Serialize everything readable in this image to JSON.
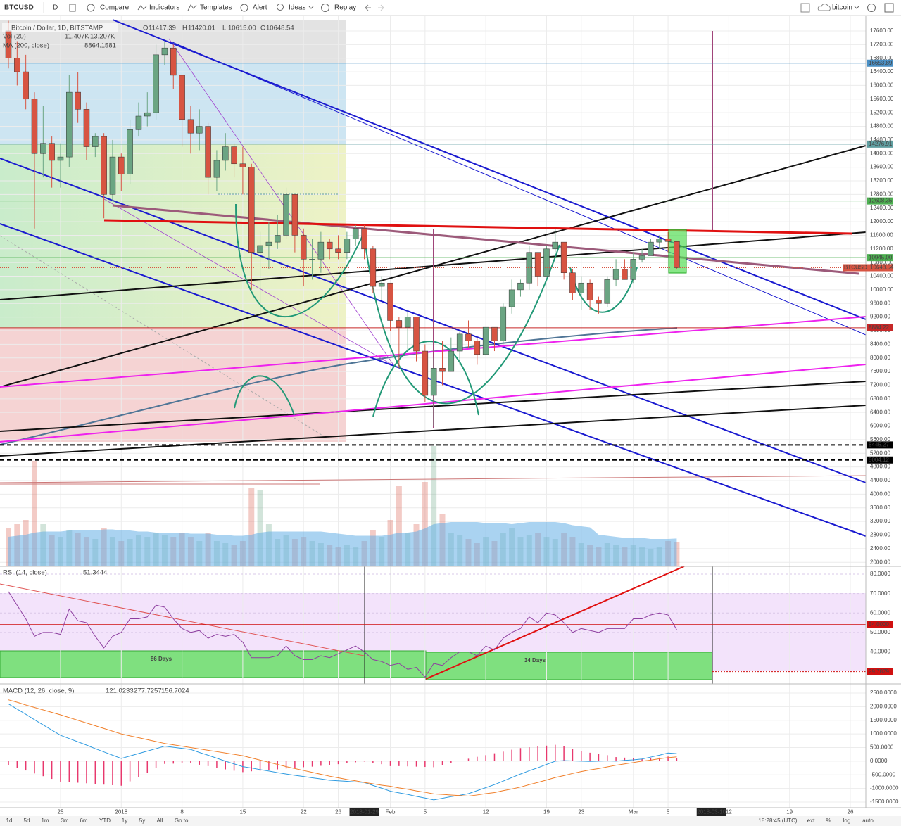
{
  "toolbar": {
    "symbol": "BTCUSD",
    "interval": "D",
    "buttons": [
      "Compare",
      "Indicators",
      "Templates",
      "Alert",
      "Ideas",
      "Replay"
    ],
    "search": "bitcoin"
  },
  "chart_data": {
    "type": "candlestick",
    "title": "Bitcoin / Dollar, 1D, BITSTAMP",
    "ohlc_labels": [
      "O",
      "H",
      "L",
      "C"
    ],
    "legend_values": [
      "11417.39",
      "11420.01",
      "10615.00",
      "10648.54"
    ],
    "up_color": "#6ba583",
    "down_color": "#d75442",
    "x": [
      "2017-12-19",
      "2017-12-20",
      "2017-12-21",
      "2017-12-22",
      "2017-12-23",
      "2017-12-24",
      "2017-12-25",
      "2017-12-26",
      "2017-12-27",
      "2017-12-28",
      "2017-12-29",
      "2017-12-30",
      "2017-12-31",
      "2018-01-01",
      "2018-01-02",
      "2018-01-03",
      "2018-01-04",
      "2018-01-05",
      "2018-01-06",
      "2018-01-07",
      "2018-01-08",
      "2018-01-09",
      "2018-01-10",
      "2018-01-11",
      "2018-01-12",
      "2018-01-13",
      "2018-01-14",
      "2018-01-15",
      "2018-01-16",
      "2018-01-17",
      "2018-01-18",
      "2018-01-19",
      "2018-01-20",
      "2018-01-21",
      "2018-01-22",
      "2018-01-23",
      "2018-01-24",
      "2018-01-25",
      "2018-01-26",
      "2018-01-27",
      "2018-01-28",
      "2018-01-29",
      "2018-01-30",
      "2018-01-31",
      "2018-02-01",
      "2018-02-02",
      "2018-02-03",
      "2018-02-04",
      "2018-02-05",
      "2018-02-06",
      "2018-02-07",
      "2018-02-08",
      "2018-02-09",
      "2018-02-10",
      "2018-02-11",
      "2018-02-12",
      "2018-02-13",
      "2018-02-14",
      "2018-02-15",
      "2018-02-16",
      "2018-02-17",
      "2018-02-18",
      "2018-02-19",
      "2018-02-20",
      "2018-02-21",
      "2018-02-22",
      "2018-02-23",
      "2018-02-24",
      "2018-02-25",
      "2018-02-26",
      "2018-02-27",
      "2018-02-28",
      "2018-03-01",
      "2018-03-02",
      "2018-03-03",
      "2018-03-04",
      "2018-03-05",
      "2018-03-06"
    ],
    "open": [
      17600,
      16800,
      16400,
      15600,
      14000,
      14300,
      13800,
      13900,
      15800,
      15300,
      14200,
      14500,
      12800,
      13900,
      13400,
      14700,
      15100,
      15200,
      16900,
      17100,
      16300,
      15000,
      14600,
      14800,
      13300,
      13800,
      14200,
      13700,
      13600,
      11100,
      11300,
      11400,
      11600,
      12800,
      11600,
      10900,
      10900,
      11400,
      11200,
      11100,
      11500,
      11800,
      11200,
      10100,
      10200,
      9100,
      8900,
      9200,
      8200,
      6900,
      7700,
      7600,
      8200,
      8700,
      8500,
      8100,
      8900,
      8500,
      9500,
      10000,
      10200,
      11100,
      10400,
      11200,
      11400,
      10500,
      9900,
      10200,
      9700,
      9600,
      10300,
      10600,
      10300,
      10900,
      11000,
      11400,
      11500,
      11417.39
    ],
    "high": [
      17900,
      17300,
      16900,
      15800,
      15400,
      14500,
      14300,
      16300,
      16400,
      15500,
      14600,
      14600,
      14400,
      14000,
      15000,
      15500,
      15800,
      17200,
      17300,
      17200,
      16300,
      15400,
      15300,
      14900,
      14100,
      14600,
      14300,
      14200,
      13700,
      11700,
      12000,
      12200,
      13000,
      12800,
      11800,
      11500,
      11700,
      11500,
      11600,
      11700,
      11900,
      11900,
      11300,
      10400,
      10200,
      9200,
      9400,
      9200,
      8400,
      8000,
      8500,
      8600,
      8800,
      9100,
      8600,
      8900,
      8900,
      9600,
      10300,
      10300,
      11300,
      11100,
      11300,
      11800,
      11400,
      10600,
      10400,
      10300,
      9800,
      10400,
      10900,
      10900,
      11100,
      11200,
      11500,
      11600,
      11700,
      11420.01
    ],
    "low": [
      16500,
      16000,
      15300,
      11800,
      13300,
      13000,
      13000,
      13600,
      14900,
      13800,
      13900,
      12100,
      12600,
      12900,
      13100,
      14500,
      14800,
      15000,
      16600,
      15900,
      14200,
      14000,
      14100,
      12800,
      12900,
      13500,
      13300,
      12800,
      10000,
      9200,
      10600,
      11200,
      11500,
      11100,
      10100,
      10300,
      10500,
      10900,
      10900,
      10900,
      11300,
      10900,
      9900,
      9700,
      8800,
      7700,
      8200,
      7900,
      6700,
      6000,
      7200,
      7600,
      7800,
      8300,
      7800,
      8100,
      8200,
      8400,
      9300,
      9800,
      10000,
      10100,
      10400,
      11100,
      10300,
      9700,
      9400,
      9400,
      9300,
      9500,
      10100,
      10300,
      10200,
      10800,
      11000,
      11200,
      11100,
      10615
    ],
    "close": [
      16800,
      16400,
      15600,
      14000,
      14300,
      13800,
      13900,
      15800,
      15300,
      14200,
      14500,
      12800,
      13900,
      13400,
      14700,
      15100,
      15200,
      16900,
      17100,
      16300,
      15000,
      14600,
      14800,
      13300,
      13800,
      14200,
      13700,
      13600,
      11100,
      11300,
      11400,
      11600,
      12800,
      11600,
      10900,
      10900,
      11400,
      11200,
      11100,
      11500,
      11800,
      11200,
      10100,
      10200,
      9100,
      8900,
      9200,
      8200,
      6900,
      7700,
      7600,
      8200,
      8700,
      8500,
      8100,
      8900,
      8500,
      9500,
      10000,
      10200,
      11100,
      10400,
      11200,
      11400,
      10500,
      9900,
      10200,
      9700,
      9600,
      10300,
      10600,
      10300,
      10900,
      11000,
      11400,
      11500,
      11417.39,
      10648.54
    ],
    "ylim": [
      1880,
      17930
    ],
    "yticks": [
      {
        "value": 2000,
        "label": "2000.00"
      },
      {
        "value": 2400,
        "label": "2400.00"
      },
      {
        "value": 2800,
        "label": "2800.00"
      },
      {
        "value": 3200,
        "label": "3200.00"
      },
      {
        "value": 3600,
        "label": "3600.00"
      },
      {
        "value": 4000,
        "label": "4000.00"
      },
      {
        "value": 4400,
        "label": "4400.00"
      },
      {
        "value": 4800,
        "label": "4800.00"
      },
      {
        "value": 5200,
        "label": "5200.00"
      },
      {
        "value": 5600,
        "label": "5600.00"
      },
      {
        "value": 6000,
        "label": "6000.00"
      },
      {
        "value": 6400,
        "label": "6400.00"
      },
      {
        "value": 6800,
        "label": "6800.00"
      },
      {
        "value": 7200,
        "label": "7200.00"
      },
      {
        "value": 7600,
        "label": "7600.00"
      },
      {
        "value": 8000,
        "label": "8000.00"
      },
      {
        "value": 8400,
        "label": "8400.00"
      },
      {
        "value": 8800,
        "label": "8800.00"
      },
      {
        "value": 9200,
        "label": "9200.00"
      },
      {
        "value": 9600,
        "label": "9600.00"
      },
      {
        "value": 10000,
        "label": "10000.00"
      },
      {
        "value": 10400,
        "label": "10400.00"
      },
      {
        "value": 10800,
        "label": "10800.00"
      },
      {
        "value": 11200,
        "label": "11200.00"
      },
      {
        "value": 11600,
        "label": "11600.00"
      },
      {
        "value": 12000,
        "label": "12000.00"
      },
      {
        "value": 12400,
        "label": "12400.00"
      },
      {
        "value": 12800,
        "label": "12800.00"
      },
      {
        "value": 13200,
        "label": "13200.00"
      },
      {
        "value": 13600,
        "label": "13600.00"
      },
      {
        "value": 14000,
        "label": "14000.00"
      },
      {
        "value": 14400,
        "label": "14400.00"
      },
      {
        "value": 14800,
        "label": "14800.00"
      },
      {
        "value": 15200,
        "label": "15200.00"
      },
      {
        "value": 15600,
        "label": "15600.00"
      },
      {
        "value": 16000,
        "label": "16000.00"
      },
      {
        "value": 16400,
        "label": "16400.00"
      },
      {
        "value": 16800,
        "label": "16800.00"
      },
      {
        "value": 17200,
        "label": "17200.00"
      },
      {
        "value": 17600,
        "label": "17600.00"
      }
    ],
    "price_lines": [
      {
        "value": 16653.89,
        "label": "16653.89",
        "color": "#4a8fc4",
        "dash": false
      },
      {
        "value": 14276.91,
        "label": "14276.91",
        "color": "#5f9ea0",
        "dash": false
      },
      {
        "value": 12608.35,
        "label": "12608.35",
        "color": "#4caf50",
        "dash": false
      },
      {
        "value": 10945,
        "label": "10945.00",
        "color": "#4caf50",
        "dash": false
      },
      {
        "value": 8884.22,
        "label": "8884.22",
        "color": "#c62828",
        "dash": false
      },
      {
        "value": 5445.27,
        "label": "5445.27",
        "color": "#000000",
        "dash": true
      },
      {
        "value": 5004.12,
        "label": "5004.12",
        "color": "#000000",
        "dash": true
      }
    ],
    "last_label": "BTCUSD",
    "xticks": [
      {
        "value": "2017-12-25",
        "label": "25"
      },
      {
        "value": "2018-01-01",
        "label": "2018"
      },
      {
        "value": "2018-01-08",
        "label": "8"
      },
      {
        "value": "2018-01-15",
        "label": "15"
      },
      {
        "value": "2018-01-22",
        "label": "22"
      },
      {
        "value": "2018-01-26",
        "label": "26"
      },
      {
        "value": "2018-01-29",
        "label": "2018-01-29",
        "highlight": true
      },
      {
        "value": "2018-02-01",
        "label": "Feb"
      },
      {
        "value": "2018-02-05",
        "label": "5"
      },
      {
        "value": "2018-02-12",
        "label": "12"
      },
      {
        "value": "2018-02-19",
        "label": "19"
      },
      {
        "value": "2018-02-23",
        "label": "23"
      },
      {
        "value": "2018-03-01",
        "label": "Mar"
      },
      {
        "value": "2018-03-05",
        "label": "5"
      },
      {
        "value": "2018-03-10",
        "label": "2018-03-10",
        "highlight": true
      },
      {
        "value": "2018-03-12",
        "label": "12"
      },
      {
        "value": "2018-03-19",
        "label": "19"
      },
      {
        "value": "2018-03-26",
        "label": "26"
      }
    ],
    "volume": {
      "name": "Vol (20)",
      "value_label": "11.407K",
      "ma_label": "13.207K",
      "ma_color": "#64aee6",
      "values": [
        18,
        20,
        22,
        50,
        20,
        15,
        14,
        17,
        16,
        14,
        13,
        18,
        14,
        12,
        13,
        15,
        14,
        16,
        15,
        14,
        16,
        14,
        12,
        16,
        12,
        11,
        10,
        12,
        37,
        36,
        20,
        13,
        15,
        13,
        14,
        12,
        11,
        10,
        9,
        10,
        9,
        12,
        17,
        14,
        22,
        38,
        16,
        20,
        40,
        57,
        25,
        16,
        15,
        13,
        11,
        14,
        12,
        16,
        18,
        14,
        15,
        16,
        14,
        13,
        16,
        14,
        11,
        10,
        9,
        11,
        10,
        9,
        10,
        9,
        8,
        9,
        12,
        11.407
      ],
      "ma_values": [
        14,
        14.5,
        15,
        16,
        16.5,
        16.5,
        16.5,
        17,
        17,
        17,
        17,
        17.5,
        17.5,
        17,
        17,
        16.5,
        16.5,
        16,
        16,
        16,
        16,
        15.5,
        15.5,
        15.5,
        15,
        15,
        14.5,
        14.5,
        15,
        16,
        16.5,
        16.5,
        16.5,
        16.5,
        16.5,
        16.5,
        16.5,
        16,
        15.5,
        15,
        14.5,
        14.5,
        14.5,
        14.5,
        15,
        16,
        16,
        16.5,
        18,
        20,
        20.5,
        21,
        21,
        21,
        21,
        20.5,
        20.5,
        20.5,
        20,
        20.5,
        21,
        21,
        21,
        21,
        20.5,
        19.5,
        19,
        18.5,
        15,
        14.5,
        14,
        13.5,
        13.5,
        13.5,
        13,
        13,
        13,
        13.207
      ]
    },
    "ma": {
      "name": "MA (200, close)",
      "value": 8864.1581,
      "color": "#2962b5"
    },
    "rsi": {
      "name": "RSI (14, close)",
      "color": "#8e3fa0",
      "ylim": [
        23.5,
        84
      ],
      "values": [
        71,
        64,
        57,
        48,
        50,
        50,
        49,
        62,
        56,
        55,
        48,
        42,
        48,
        50,
        57,
        57,
        58,
        64,
        63,
        57,
        52,
        50,
        51,
        47,
        49,
        48,
        49,
        45,
        37,
        37,
        37,
        38,
        43,
        38,
        36,
        36,
        38,
        37,
        39,
        41,
        43,
        40,
        36,
        35,
        33,
        34,
        31,
        32,
        27,
        34,
        33,
        37,
        40,
        40,
        38,
        43,
        41,
        47,
        50,
        52,
        58,
        55,
        60,
        59,
        55,
        50,
        52,
        51,
        50,
        52,
        52,
        52,
        57,
        57,
        59,
        60,
        59,
        51.3444
      ],
      "yticks": [
        {
          "value": 40,
          "label": "40.0000"
        },
        {
          "value": 50,
          "label": "50.0000"
        },
        {
          "value": 60,
          "label": "60.0000"
        },
        {
          "value": 70,
          "label": "70.0000"
        },
        {
          "value": 80,
          "label": "80.0000"
        }
      ],
      "lines": [
        {
          "value": 54,
          "label": "54.0000"
        },
        {
          "value": 29.7879,
          "label": "29.7879"
        }
      ],
      "annotations": [
        "86 Days",
        "34 Days"
      ]
    },
    "macd": {
      "name": "MACD (12, 26, close, 9)",
      "ylim": [
        -1706,
        2835
      ],
      "colors": {
        "hist": "#e8386d",
        "macd": "#2f9be0",
        "signal": "#f07f2a"
      },
      "hist": [
        -150,
        -250,
        -340,
        -450,
        -550,
        -650,
        -750,
        -770,
        -790,
        -810,
        -840,
        -860,
        -880,
        -900,
        -740,
        -580,
        -420,
        -260,
        -100,
        -90,
        -80,
        -70,
        -130,
        -180,
        -240,
        -300,
        -350,
        -400,
        -370,
        -350,
        -320,
        -300,
        -270,
        -250,
        -220,
        -200,
        -170,
        -150,
        -110,
        -70,
        -40,
        0,
        -60,
        -110,
        -180,
        -180,
        -190,
        -200,
        -210,
        -220,
        -140,
        -60,
        10,
        90,
        160,
        220,
        290,
        350,
        420,
        480,
        510,
        540,
        570,
        600,
        550,
        460,
        380,
        310,
        270,
        220,
        150,
        130,
        100,
        80,
        110,
        130,
        170,
        121.0233
      ],
      "macd": [
        2100,
        1910,
        1720,
        1520,
        1330,
        1140,
        950,
        830,
        710,
        590,
        460,
        340,
        220,
        100,
        190,
        280,
        370,
        460,
        550,
        510,
        470,
        430,
        320,
        220,
        110,
        0,
        -100,
        -200,
        -250,
        -310,
        -360,
        -420,
        -470,
        -520,
        -560,
        -610,
        -650,
        -700,
        -720,
        -740,
        -760,
        -780,
        -890,
        -990,
        -1100,
        -1160,
        -1220,
        -1290,
        -1350,
        -1420,
        -1360,
        -1300,
        -1250,
        -1190,
        -1080,
        -970,
        -860,
        -730,
        -600,
        -470,
        -350,
        -240,
        -120,
        0,
        20,
        10,
        0,
        -10,
        0,
        10,
        0,
        30,
        50,
        80,
        150,
        220,
        300,
        277.7257
      ],
      "signal": [
        2250,
        2160,
        2060,
        1970,
        1880,
        1790,
        1700,
        1600,
        1500,
        1400,
        1300,
        1200,
        1100,
        1000,
        930,
        860,
        790,
        720,
        650,
        600,
        550,
        500,
        450,
        400,
        350,
        300,
        250,
        200,
        120,
        40,
        -40,
        -120,
        -200,
        -270,
        -340,
        -410,
        -480,
        -550,
        -610,
        -670,
        -720,
        -780,
        -830,
        -880,
        -920,
        -980,
        -1030,
        -1090,
        -1140,
        -1200,
        -1220,
        -1240,
        -1260,
        -1280,
        -1240,
        -1190,
        -1150,
        -1080,
        -1020,
        -950,
        -860,
        -780,
        -690,
        -600,
        -530,
        -450,
        -380,
        -320,
        -270,
        -210,
        -150,
        -100,
        -50,
        0,
        40,
        90,
        130,
        156.7024
      ],
      "yticks": [
        {
          "value": -1500,
          "label": "-1500.0000"
        },
        {
          "value": -1000,
          "label": "-1000.0000"
        },
        {
          "value": -500,
          "label": "-500.0000"
        },
        {
          "value": 0,
          "label": "0.0000"
        },
        {
          "value": 500,
          "label": "500.0000"
        },
        {
          "value": 1000,
          "label": "1000.0000"
        },
        {
          "value": 1500,
          "label": "1500.0000"
        },
        {
          "value": 2000,
          "label": "2000.0000"
        },
        {
          "value": 2500,
          "label": "2500.0000"
        }
      ]
    }
  },
  "range_bar": {
    "buttons": [
      "1d",
      "5d",
      "1m",
      "3m",
      "6m",
      "YTD",
      "1y",
      "5y",
      "All",
      "Go to..."
    ],
    "time": "18:28:45 (UTC)",
    "options": [
      "ext",
      "%",
      "log",
      "auto"
    ]
  }
}
